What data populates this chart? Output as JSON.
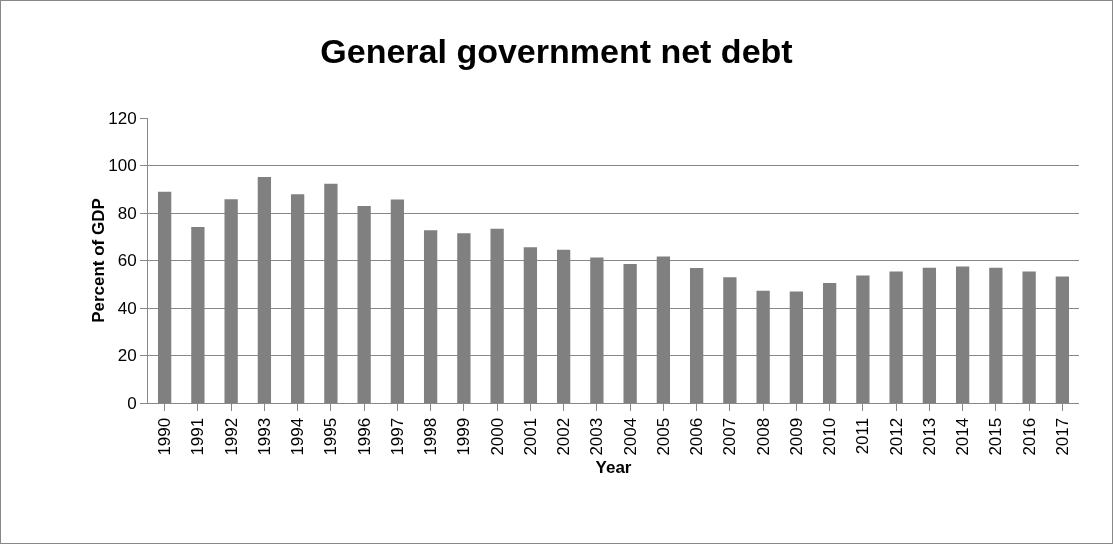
{
  "chart_data": {
    "type": "bar",
    "title": "General government net debt",
    "xlabel": "Year",
    "ylabel": "Percent of GDP",
    "categories": [
      "1990",
      "1991",
      "1992",
      "1993",
      "1994",
      "1995",
      "1996",
      "1997",
      "1998",
      "1999",
      "2000",
      "2001",
      "2002",
      "2003",
      "2004",
      "2005",
      "2006",
      "2007",
      "2008",
      "2009",
      "2010",
      "2011",
      "2012",
      "2013",
      "2014",
      "2015",
      "2016",
      "2017"
    ],
    "values": [
      88.9,
      74.1,
      85.8,
      95.2,
      87.9,
      92.3,
      82.9,
      85.7,
      72.7,
      71.5,
      73.4,
      65.6,
      64.5,
      61.3,
      58.5,
      61.7,
      56.8,
      53.0,
      47.3,
      47.0,
      50.5,
      53.7,
      55.4,
      56.9,
      57.5,
      56.9,
      55.4,
      53.3
    ],
    "color": "#808080",
    "ylim": [
      0,
      120
    ],
    "yticks": [
      0,
      20,
      40,
      60,
      80,
      100,
      120
    ],
    "grid": "y",
    "legend": false
  }
}
